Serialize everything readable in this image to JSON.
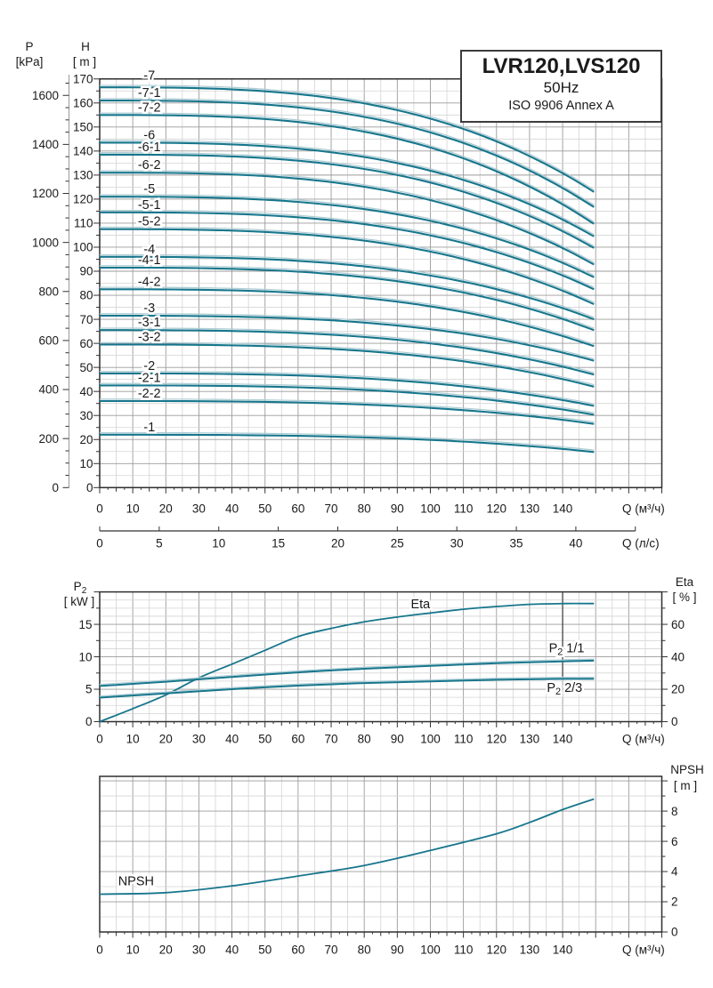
{
  "title_box": {
    "model": "LVR120,LVS120",
    "frequency": "50Hz",
    "standard": "ISO 9906 Annex A"
  },
  "colors": {
    "curve": "#17768C",
    "curve_halo": "#AFCDD5",
    "grid_minor": "#D4D4D4",
    "grid_major": "#9B9B9B",
    "frame": "#2E2E2E",
    "tick": "#333333",
    "text": "#1A1A1A",
    "kpa_axis_line": "#9A9A9A"
  },
  "chart_data": [
    {
      "id": "qh_curves",
      "type": "line",
      "title": "LVR120,LVS120 50Hz ISO 9906 Annex A",
      "grid": true,
      "x_axis": {
        "label": "Q (м³/ч)",
        "ticks": [
          0,
          10,
          20,
          30,
          40,
          50,
          60,
          70,
          80,
          90,
          100,
          110,
          120,
          130,
          140
        ],
        "range": [
          0,
          170
        ],
        "grid_step": 5,
        "major_step": 10
      },
      "x_axis2": {
        "label": "Q (л/с)",
        "ticks": [
          0,
          5,
          10,
          15,
          20,
          25,
          30,
          35,
          40
        ],
        "range": [
          0,
          45
        ],
        "m3h_per_lps": 3.6
      },
      "y_axis_H": {
        "name": "H",
        "unit": "[ m ]",
        "ticks": [
          0,
          10,
          20,
          30,
          40,
          50,
          60,
          70,
          80,
          90,
          100,
          110,
          120,
          130,
          140,
          150,
          160,
          170
        ],
        "range": [
          0,
          170
        ],
        "grid_step": 5,
        "major_step": 10
      },
      "y_axis_P": {
        "name": "P",
        "unit": "[kPa]",
        "ticks": [
          0,
          200,
          400,
          600,
          800,
          1000,
          1200,
          1400,
          1600
        ],
        "minor_step": 50,
        "kpa_per_m": 9.8066
      },
      "curve_q_end": 149.5,
      "curve_exponent": 3.0,
      "series": [
        {
          "label": "-7",
          "h_shutoff": 166.5,
          "h_end": 123.0
        },
        {
          "label": "-7-1",
          "h_shutoff": 161.0,
          "h_end": 116.7
        },
        {
          "label": "-7-2",
          "h_shutoff": 155.0,
          "h_end": 109.7
        },
        {
          "label": "-6",
          "h_shutoff": 143.5,
          "h_end": 104.5
        },
        {
          "label": "-6-1",
          "h_shutoff": 138.5,
          "h_end": 99.7
        },
        {
          "label": "-6-2",
          "h_shutoff": 131.0,
          "h_end": 92.8
        },
        {
          "label": "-5",
          "h_shutoff": 121.0,
          "h_end": 87.5
        },
        {
          "label": "-5-1",
          "h_shutoff": 114.5,
          "h_end": 82.5
        },
        {
          "label": "-5-2",
          "h_shutoff": 107.5,
          "h_end": 76.3
        },
        {
          "label": "-4",
          "h_shutoff": 96.0,
          "h_end": 70.0
        },
        {
          "label": "-4-1",
          "h_shutoff": 91.5,
          "h_end": 65.5
        },
        {
          "label": "-4-2",
          "h_shutoff": 82.5,
          "h_end": 58.8
        },
        {
          "label": "-3",
          "h_shutoff": 71.5,
          "h_end": 52.8
        },
        {
          "label": "-3-1",
          "h_shutoff": 65.5,
          "h_end": 47.0
        },
        {
          "label": "-3-2",
          "h_shutoff": 59.5,
          "h_end": 42.0
        },
        {
          "label": "-2",
          "h_shutoff": 47.5,
          "h_end": 34.0
        },
        {
          "label": "-2-1",
          "h_shutoff": 42.5,
          "h_end": 30.3
        },
        {
          "label": "-2-2",
          "h_shutoff": 36.0,
          "h_end": 26.5
        },
        {
          "label": "-1",
          "h_shutoff": 22.0,
          "h_end": 14.8
        }
      ]
    },
    {
      "id": "power_eta",
      "type": "line",
      "grid": true,
      "x_axis": {
        "label": "Q (м³/ч)",
        "ticks": [
          0,
          10,
          20,
          30,
          40,
          50,
          60,
          70,
          80,
          90,
          100,
          110,
          120,
          130,
          140
        ],
        "range": [
          0,
          170
        ],
        "grid_step": 5,
        "major_step": 10
      },
      "y_axis_left": {
        "name": "P2",
        "unit": "[ kW ]",
        "ticks": [
          0,
          5,
          10,
          15
        ],
        "range": [
          0,
          20
        ],
        "grid_step": 1.25,
        "major_step": 5
      },
      "y_axis_right": {
        "name": "Eta",
        "unit": "[ % ]",
        "ticks": [
          0,
          20,
          40,
          60
        ],
        "range": [
          0,
          80
        ]
      },
      "marker_line_q": 140,
      "series": [
        {
          "label": "Eta",
          "axis": "right",
          "label_pos": [
            97,
            70
          ],
          "points": [
            [
              0,
              0
            ],
            [
              10,
              8
            ],
            [
              20,
              16.5
            ],
            [
              30,
              27
            ],
            [
              40,
              35.5
            ],
            [
              50,
              44
            ],
            [
              60,
              52.5
            ],
            [
              70,
              57.5
            ],
            [
              80,
              61.5
            ],
            [
              90,
              64.5
            ],
            [
              100,
              67
            ],
            [
              110,
              69.3
            ],
            [
              120,
              71
            ],
            [
              130,
              72.3
            ],
            [
              140,
              72.8
            ],
            [
              149.5,
              72.8
            ]
          ]
        },
        {
          "label": "P2 1/1",
          "axis": "left",
          "label_pos": [
            141.2,
            10.7
          ],
          "points": [
            [
              0,
              5.5
            ],
            [
              20,
              6.15
            ],
            [
              40,
              6.9
            ],
            [
              60,
              7.6
            ],
            [
              80,
              8.15
            ],
            [
              100,
              8.6
            ],
            [
              120,
              9.0
            ],
            [
              140,
              9.3
            ],
            [
              149.5,
              9.4
            ]
          ]
        },
        {
          "label": "P2 2/3",
          "axis": "left",
          "label_pos": [
            140.6,
            4.6
          ],
          "points": [
            [
              0,
              3.7
            ],
            [
              20,
              4.35
            ],
            [
              40,
              5.0
            ],
            [
              60,
              5.55
            ],
            [
              80,
              5.95
            ],
            [
              100,
              6.2
            ],
            [
              120,
              6.45
            ],
            [
              140,
              6.6
            ],
            [
              149.5,
              6.6
            ]
          ]
        }
      ]
    },
    {
      "id": "npsh",
      "type": "line",
      "grid": true,
      "x_axis": {
        "label": "Q (м³/ч)",
        "ticks": [
          0,
          10,
          20,
          30,
          40,
          50,
          60,
          70,
          80,
          90,
          100,
          110,
          120,
          130,
          140
        ],
        "range": [
          0,
          170
        ],
        "grid_step": 5,
        "major_step": 10
      },
      "y_axis_right": {
        "name": "NPSH",
        "unit": "[ m ]",
        "ticks": [
          0,
          2,
          4,
          6,
          8
        ],
        "range": [
          0,
          10.3
        ],
        "grid_step": 1,
        "major_step": 2
      },
      "series": [
        {
          "label": "NPSH",
          "label_pos": [
            11,
            3.1
          ],
          "points": [
            [
              0,
              2.5
            ],
            [
              20,
              2.6
            ],
            [
              40,
              3.05
            ],
            [
              60,
              3.7
            ],
            [
              80,
              4.4
            ],
            [
              100,
              5.4
            ],
            [
              120,
              6.5
            ],
            [
              130,
              7.25
            ],
            [
              140,
              8.1
            ],
            [
              149.5,
              8.8
            ]
          ]
        }
      ]
    }
  ]
}
